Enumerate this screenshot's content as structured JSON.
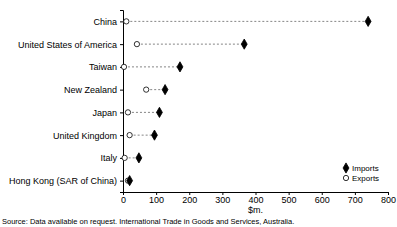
{
  "chart_data": {
    "type": "dot",
    "orientation": "horizontal",
    "categories": [
      "China",
      "United States of America",
      "Taiwan",
      "New Zealand",
      "Japan",
      "United Kingdom",
      "Italy",
      "Hong Kong (SAR of China)"
    ],
    "series": [
      {
        "name": "Imports",
        "color": "#000000",
        "marker": "diamond",
        "values": [
          740,
          366,
          172,
          127,
          110,
          95,
          48,
          20
        ]
      },
      {
        "name": "Exports",
        "color": "#000000",
        "marker": "circle",
        "values": [
          10,
          42,
          3,
          70,
          15,
          20,
          5,
          15
        ]
      }
    ],
    "xlabel": "$m.",
    "xlim": [
      0,
      800
    ],
    "xticks": [
      0,
      100,
      200,
      300,
      400,
      500,
      600,
      700,
      800
    ],
    "grid": false,
    "legend": "lower right",
    "annotations": [
      "Source: Data available on request. International Trade in Goods and Services, Australia."
    ]
  }
}
